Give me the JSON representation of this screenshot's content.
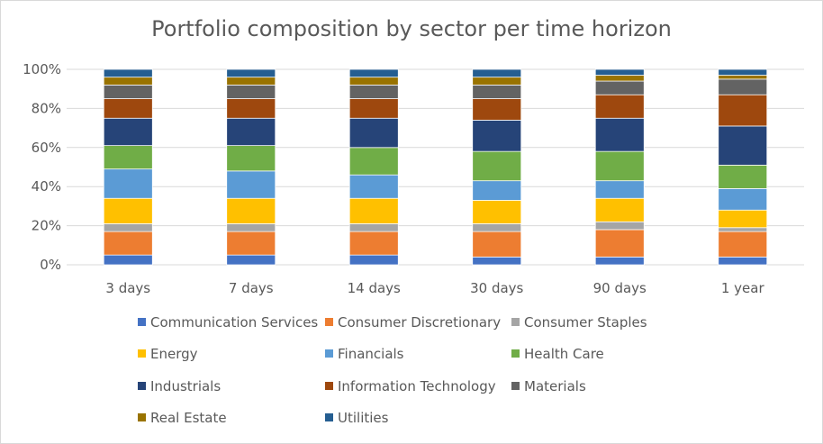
{
  "chart_data": {
    "type": "bar",
    "stacked": true,
    "percent": true,
    "title": "Portfolio composition by sector per time horizon",
    "categories": [
      "3 days",
      "7 days",
      "14 days",
      "30 days",
      "90 days",
      "1 year"
    ],
    "y_ticks": [
      "0%",
      "20%",
      "40%",
      "60%",
      "80%",
      "100%"
    ],
    "ylim": [
      0,
      100
    ],
    "grid": true,
    "legend_position": "bottom",
    "series": [
      {
        "name": "Communication Services",
        "color": "#4472C4",
        "values": [
          5,
          5,
          5,
          4,
          4,
          4
        ]
      },
      {
        "name": "Consumer Discretionary",
        "color": "#ED7D31",
        "values": [
          12,
          12,
          12,
          13,
          14,
          13
        ]
      },
      {
        "name": "Consumer Staples",
        "color": "#A5A5A5",
        "values": [
          4,
          4,
          4,
          4,
          4,
          2
        ]
      },
      {
        "name": "Energy",
        "color": "#FFC000",
        "values": [
          13,
          13,
          13,
          12,
          12,
          9
        ]
      },
      {
        "name": "Financials",
        "color": "#5B9BD5",
        "values": [
          15,
          14,
          12,
          10,
          9,
          11
        ]
      },
      {
        "name": "Health Care",
        "color": "#70AD47",
        "values": [
          12,
          13,
          14,
          15,
          15,
          12
        ]
      },
      {
        "name": "Industrials",
        "color": "#264478",
        "values": [
          14,
          14,
          15,
          16,
          17,
          20
        ]
      },
      {
        "name": "Information Technology",
        "color": "#9E480E",
        "values": [
          10,
          10,
          10,
          11,
          12,
          16
        ]
      },
      {
        "name": "Materials",
        "color": "#636363",
        "values": [
          7,
          7,
          7,
          7,
          7,
          8
        ]
      },
      {
        "name": "Real Estate",
        "color": "#997300",
        "values": [
          4,
          4,
          4,
          4,
          3,
          2
        ]
      },
      {
        "name": "Utilities",
        "color": "#255E91",
        "values": [
          4,
          4,
          4,
          4,
          3,
          3
        ]
      }
    ]
  }
}
